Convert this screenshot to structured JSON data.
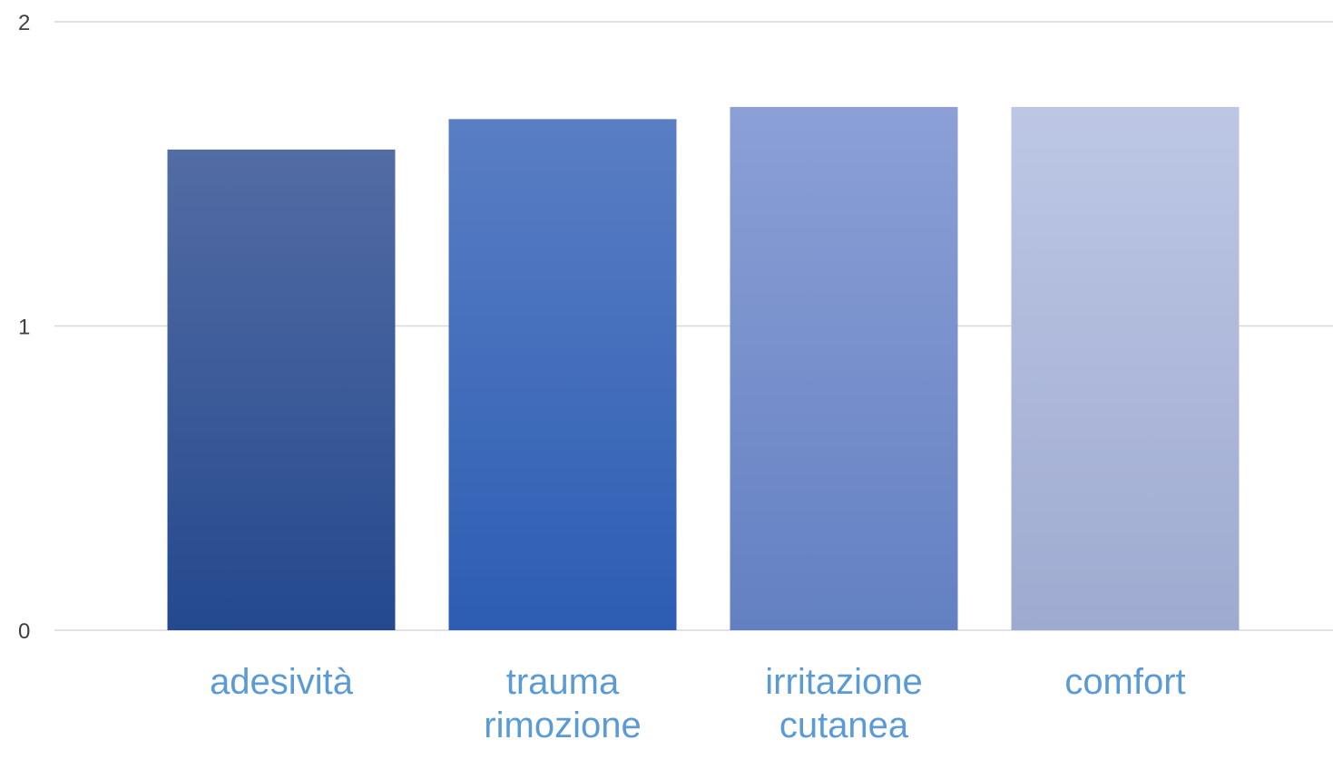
{
  "chart_data": {
    "type": "bar",
    "categories": [
      "adesività",
      "trauma\nrimozione",
      "irritazione\ncutanea",
      "comfort"
    ],
    "values": [
      1.58,
      1.68,
      1.72,
      1.72
    ],
    "ylim": [
      0,
      2
    ],
    "yticks": [
      "0",
      "1",
      "2"
    ],
    "grid": true,
    "legend": "none",
    "colors": {
      "bars": [
        [
          "#536ca4",
          "#24498e"
        ],
        [
          "#5a7ec4",
          "#2c5db3"
        ],
        [
          "#8ca0d6",
          "#6380c2"
        ],
        [
          "#bdc7e5",
          "#9eaad0"
        ]
      ],
      "grid": "#d9d9d9",
      "tick_label": "#404040",
      "category_label": "#5b9bd5"
    }
  }
}
